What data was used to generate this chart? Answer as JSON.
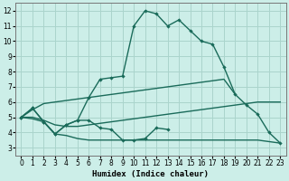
{
  "xlabel": "Humidex (Indice chaleur)",
  "bg_color": "#cceee8",
  "grid_color": "#aad4cc",
  "line_color": "#1a6b5a",
  "xlim": [
    -0.5,
    23.5
  ],
  "ylim": [
    2.5,
    12.5
  ],
  "xticks": [
    0,
    1,
    2,
    3,
    4,
    5,
    6,
    7,
    8,
    9,
    10,
    11,
    12,
    13,
    14,
    15,
    16,
    17,
    18,
    19,
    20,
    21,
    22,
    23
  ],
  "yticks": [
    3,
    4,
    5,
    6,
    7,
    8,
    9,
    10,
    11,
    12
  ],
  "curve_main_x": [
    0,
    1,
    2,
    3,
    4,
    5,
    6,
    7,
    8,
    9,
    10,
    11,
    12,
    13,
    14,
    15,
    16,
    17,
    18,
    19,
    20,
    21,
    22,
    23
  ],
  "curve_main_y": [
    5.0,
    5.6,
    4.7,
    3.9,
    4.5,
    4.8,
    6.3,
    7.5,
    7.6,
    7.7,
    11.0,
    12.0,
    11.8,
    11.0,
    11.4,
    10.7,
    10.0,
    9.8,
    8.3,
    6.5,
    5.8,
    5.2,
    4.0,
    3.3
  ],
  "curve_upper_x": [
    0,
    1,
    2,
    3,
    4,
    5,
    6,
    7,
    8,
    9,
    10,
    11,
    12,
    13,
    14,
    15,
    16,
    17,
    18,
    19
  ],
  "curve_upper_y": [
    5.0,
    5.5,
    5.9,
    6.0,
    6.1,
    6.2,
    6.3,
    6.4,
    6.5,
    6.6,
    6.7,
    6.8,
    6.9,
    7.0,
    7.1,
    7.2,
    7.3,
    7.4,
    7.5,
    6.5
  ],
  "curve_mid_x": [
    0,
    1,
    2,
    3,
    4,
    5,
    6,
    7,
    8,
    9,
    10,
    11,
    12,
    13,
    14,
    15,
    16,
    17,
    18,
    19,
    20,
    21,
    22,
    23
  ],
  "curve_mid_y": [
    5.0,
    5.0,
    4.8,
    4.5,
    4.4,
    4.4,
    4.5,
    4.6,
    4.7,
    4.8,
    4.9,
    5.0,
    5.1,
    5.2,
    5.3,
    5.4,
    5.5,
    5.6,
    5.7,
    5.8,
    5.9,
    6.0,
    6.0,
    6.0
  ],
  "curve_low_x": [
    0,
    1,
    2,
    3,
    4,
    5,
    6,
    7,
    8,
    9,
    10,
    11,
    12,
    13,
    14,
    15,
    16,
    17,
    18,
    19,
    20,
    21,
    22,
    23
  ],
  "curve_low_y": [
    5.0,
    4.9,
    4.7,
    3.9,
    3.8,
    3.6,
    3.5,
    3.5,
    3.5,
    3.5,
    3.5,
    3.5,
    3.5,
    3.5,
    3.5,
    3.5,
    3.5,
    3.5,
    3.5,
    3.5,
    3.5,
    3.5,
    3.4,
    3.3
  ],
  "curve_noisy_x": [
    0,
    1,
    2,
    3,
    4,
    5,
    6,
    7,
    8,
    9,
    10,
    11,
    12,
    13
  ],
  "curve_noisy_y": [
    5.0,
    5.6,
    4.7,
    3.9,
    4.5,
    4.8,
    4.8,
    4.3,
    4.2,
    3.5,
    3.5,
    3.6,
    4.3,
    4.2
  ]
}
